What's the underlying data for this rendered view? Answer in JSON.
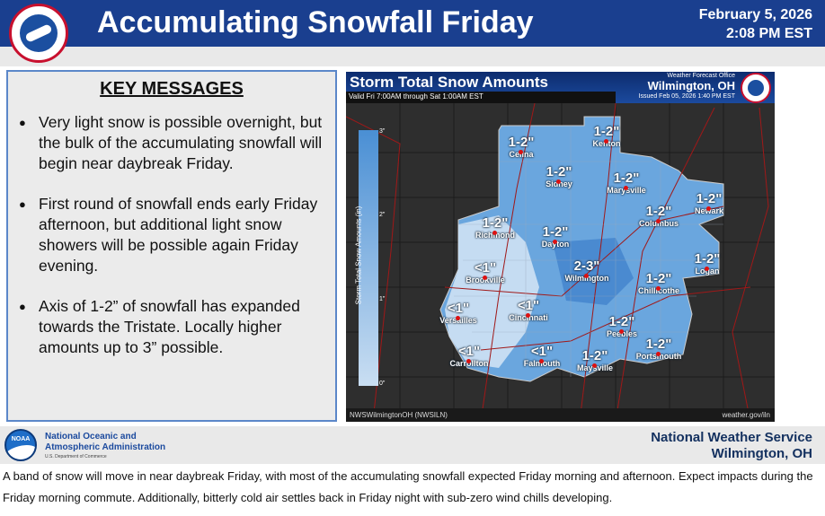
{
  "header": {
    "title": "Accumulating Snowfall Friday",
    "date": "February 5, 2026",
    "time": "2:08 PM EST",
    "logo_text": "NATIONAL WEATHER SERVICE"
  },
  "key_messages": {
    "heading": "KEY MESSAGES",
    "items": [
      "Very light snow is possible overnight, but the bulk of the accumulating snowfall will begin near daybreak Friday.",
      "First round of snowfall ends early Friday afternoon, but additional light snow showers will be possible again Friday evening.",
      "Axis of 1-2” of snowfall has expanded towards the Tristate. Locally higher amounts up to 3” possible."
    ]
  },
  "map": {
    "title": "Storm Total Snow Amounts",
    "valid": "Valid Fri 7:00AM through Sat 1:00AM EST",
    "office_label": "Weather Forecast Office",
    "office": "Wilmington, OH",
    "issued": "Issued Feb 05, 2026 1:40 PM EST",
    "legend": {
      "title": "Storm Total Snow Amounts (in)",
      "ticks": [
        "3\"",
        "2\"",
        "1\"",
        "0\""
      ],
      "colors": [
        "#4a8fd4",
        "#c9def2"
      ]
    },
    "footer_left": "NWSWilmingtonOH (NWSILN)",
    "footer_right": "weather.gov/iln",
    "locations": [
      {
        "city": "Celina",
        "amount": "1-2\""
      },
      {
        "city": "Kenton",
        "amount": "1-2\""
      },
      {
        "city": "Sidney",
        "amount": "1-2\""
      },
      {
        "city": "Marysville",
        "amount": "1-2\""
      },
      {
        "city": "Columbus",
        "amount": "1-2\""
      },
      {
        "city": "Newark",
        "amount": "1-2\""
      },
      {
        "city": "Richmond",
        "amount": "1-2\""
      },
      {
        "city": "Dayton",
        "amount": "1-2\""
      },
      {
        "city": "Logan",
        "amount": "1-2\""
      },
      {
        "city": "Brookville",
        "amount": "<1\""
      },
      {
        "city": "Wilmington",
        "amount": "2-3\""
      },
      {
        "city": "Chillicothe",
        "amount": "1-2\""
      },
      {
        "city": "Versailles",
        "amount": "<1\""
      },
      {
        "city": "Cincinnati",
        "amount": "<1\""
      },
      {
        "city": "Peebles",
        "amount": "1-2\""
      },
      {
        "city": "Portsmouth",
        "amount": "1-2\""
      },
      {
        "city": "Carrollton",
        "amount": "<1\""
      },
      {
        "city": "Falmouth",
        "amount": "<1\""
      },
      {
        "city": "Maysville",
        "amount": "1-2\""
      }
    ]
  },
  "footer": {
    "noaa_line1": "National Oceanic and",
    "noaa_line2": "Atmospheric Administration",
    "noaa_line3": "U.S. Department of Commerce",
    "noaa_logo_text": "NOAA",
    "nws_line1": "National Weather Service",
    "nws_line2": "Wilmington, OH"
  },
  "caption": "A band of snow will move in near daybreak Friday, with most of the accumulating snowfall expected Friday morning and afternoon. Expect impacts during the Friday morning commute. Additionally, bitterly cold air settles back in Friday night with sub-zero wind chills developing.",
  "colors": {
    "header": "#1a3f8f",
    "accent": "#5b87c9"
  }
}
